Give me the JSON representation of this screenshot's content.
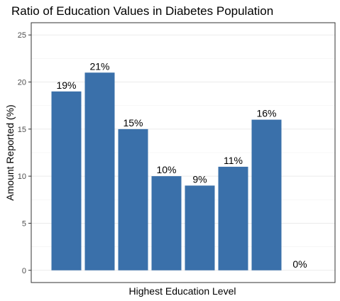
{
  "chart_data": {
    "type": "bar",
    "title": "Ratio of Education Values in Diabetes Population",
    "xlabel": "Highest Education Level",
    "ylabel": "Amount Reported (%)",
    "ylim": [
      -1.3,
      26.3
    ],
    "yticks": [
      0,
      5,
      10,
      15,
      20,
      25
    ],
    "grid": true,
    "bar_color": "#3a70aa",
    "values": [
      19,
      21,
      15,
      10,
      9,
      11,
      16,
      0
    ],
    "data_labels": [
      "19%",
      "21%",
      "15%",
      "10%",
      "9%",
      "11%",
      "16%",
      "0%"
    ]
  }
}
